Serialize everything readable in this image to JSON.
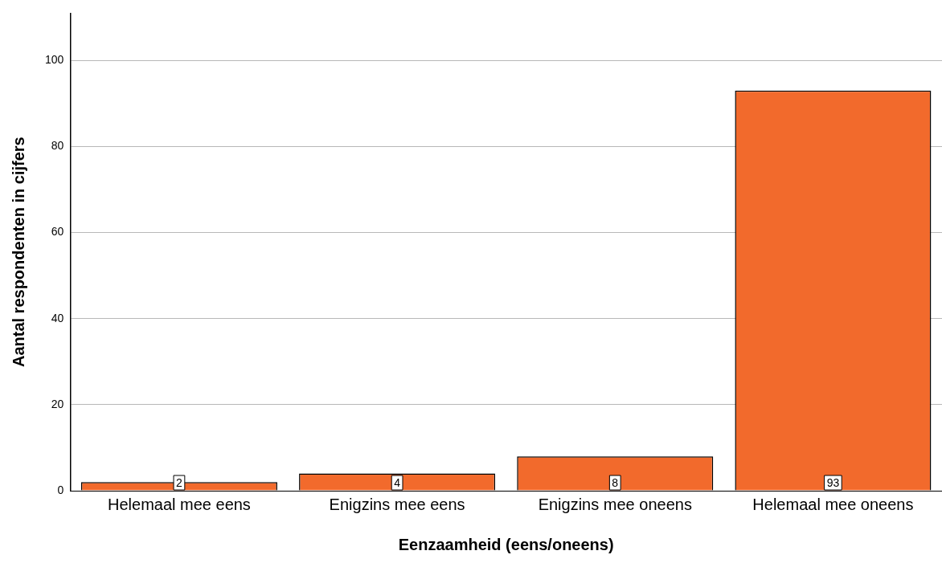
{
  "chart_data": {
    "type": "bar",
    "xlabel": "Eenzaamheid (eens/oneens)",
    "ylabel": "Aantal respondenten in cijfers",
    "categories": [
      "Helemaal mee eens",
      "Enigzins mee eens",
      "Enigzins mee oneens",
      "Helemaal mee oneens"
    ],
    "values": [
      2,
      4,
      8,
      93
    ],
    "color": "#f26a2c",
    "ylim": [
      0,
      111
    ],
    "yticks": [
      0,
      20,
      40,
      60,
      80,
      100
    ],
    "grid": "y",
    "data_labels": true
  }
}
